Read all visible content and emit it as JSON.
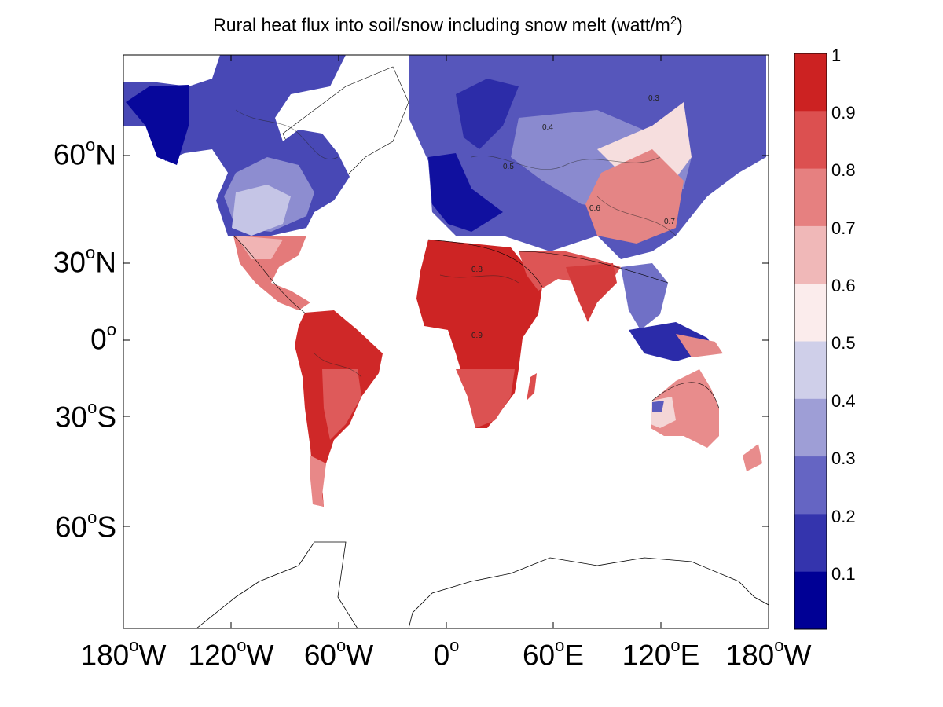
{
  "title": {
    "text": "Rural heat flux into soil/snow including snow melt (watt/m",
    "superscript": "2",
    "suffix": ")"
  },
  "y_axis_labels": [
    {
      "deg": "60",
      "hemi": "N"
    },
    {
      "deg": "30",
      "hemi": "N"
    },
    {
      "deg": "0",
      "hemi": ""
    },
    {
      "deg": "30",
      "hemi": "S"
    },
    {
      "deg": "60",
      "hemi": "S"
    }
  ],
  "x_axis_labels": [
    {
      "deg": "180",
      "hemi": "W"
    },
    {
      "deg": "120",
      "hemi": "W"
    },
    {
      "deg": "60",
      "hemi": "W"
    },
    {
      "deg": "0",
      "hemi": ""
    },
    {
      "deg": "60",
      "hemi": "E"
    },
    {
      "deg": "120",
      "hemi": "E"
    },
    {
      "deg": "180",
      "hemi": "W"
    }
  ],
  "degree_symbol": "o",
  "colorbar": {
    "labels": [
      "1",
      "0.9",
      "0.8",
      "0.7",
      "0.6",
      "0.5",
      "0.4",
      "0.3",
      "0.2",
      "0.1"
    ],
    "colors": [
      "#cc2222",
      "#dc5050",
      "#e68080",
      "#f0b8b8",
      "#fbecec",
      "#cfcfe9",
      "#9e9ed6",
      "#6565c3",
      "#3434ad",
      "#000095"
    ]
  },
  "map": {
    "projection": "mercator",
    "lon_range": [
      -180,
      180
    ],
    "lat_range": [
      -80,
      80
    ],
    "contour_labels": [
      "0.3",
      "0.4",
      "0.5",
      "0.6",
      "0.7",
      "0.8",
      "0.9"
    ]
  }
}
